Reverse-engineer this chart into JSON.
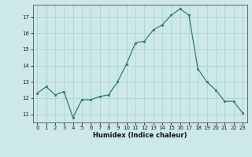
{
  "x": [
    0,
    1,
    2,
    3,
    4,
    5,
    6,
    7,
    8,
    9,
    10,
    11,
    12,
    13,
    14,
    15,
    16,
    17,
    18,
    19,
    20,
    21,
    22,
    23
  ],
  "y": [
    12.3,
    12.7,
    12.2,
    12.4,
    10.8,
    11.9,
    11.9,
    12.1,
    12.2,
    13.0,
    14.1,
    15.4,
    15.5,
    16.2,
    16.5,
    17.1,
    17.5,
    17.1,
    13.8,
    13.0,
    12.5,
    11.8,
    11.8,
    11.1
  ],
  "xlim": [
    -0.5,
    23.5
  ],
  "ylim": [
    10.5,
    17.75
  ],
  "yticks": [
    11,
    12,
    13,
    14,
    15,
    16,
    17
  ],
  "xticks": [
    0,
    1,
    2,
    3,
    4,
    5,
    6,
    7,
    8,
    9,
    10,
    11,
    12,
    13,
    14,
    15,
    16,
    17,
    18,
    19,
    20,
    21,
    22,
    23
  ],
  "xlabel": "Humidex (Indice chaleur)",
  "line_color": "#2e7d6e",
  "marker_color": "#2e7d6e",
  "bg_color": "#cce8e8",
  "grid_color": "#add4d0",
  "tick_fontsize": 5.0,
  "xlabel_fontsize": 6.0
}
